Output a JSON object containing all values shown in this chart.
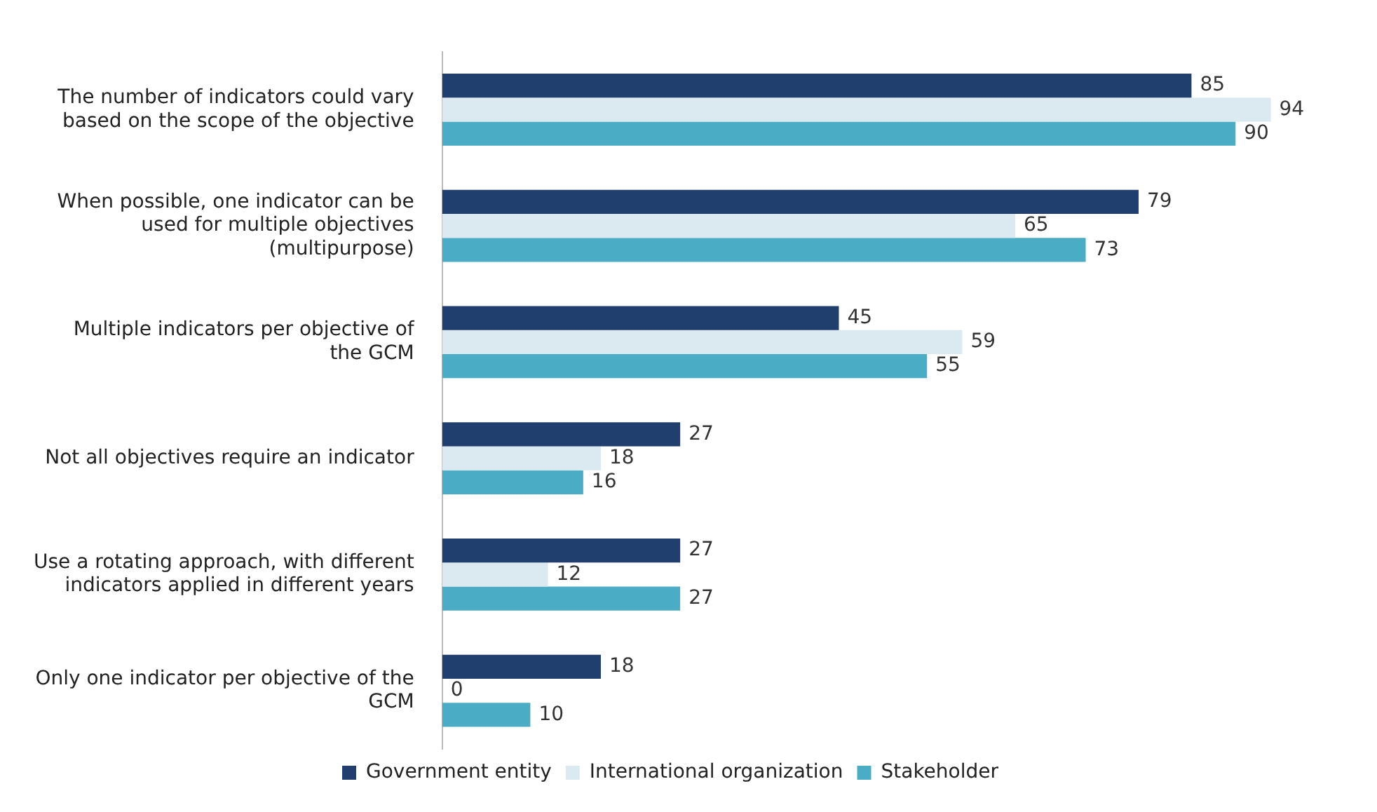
{
  "chart_data": {
    "type": "bar",
    "orientation": "horizontal",
    "categories": [
      "The number of indicators could vary based on the scope of the objective",
      "When possible, one indicator can be used for multiple objectives (multipurpose)",
      "Multiple indicators per objective of the GCM",
      "Not all objectives require an indicator",
      "Use a rotating approach, with different indicators applied in different years",
      "Only one indicator per objective of the GCM"
    ],
    "series": [
      {
        "name": "Government entity",
        "color": "#203f6e",
        "values": [
          85,
          79,
          45,
          27,
          27,
          18
        ]
      },
      {
        "name": "International organization",
        "color": "#dbe9f1",
        "values": [
          94,
          65,
          59,
          18,
          12,
          0
        ]
      },
      {
        "name": "Stakeholder",
        "color": "#4bacc6",
        "values": [
          90,
          73,
          55,
          16,
          27,
          10
        ]
      }
    ],
    "data_labels": true,
    "legend": "bottom",
    "tick_labels": "y"
  }
}
